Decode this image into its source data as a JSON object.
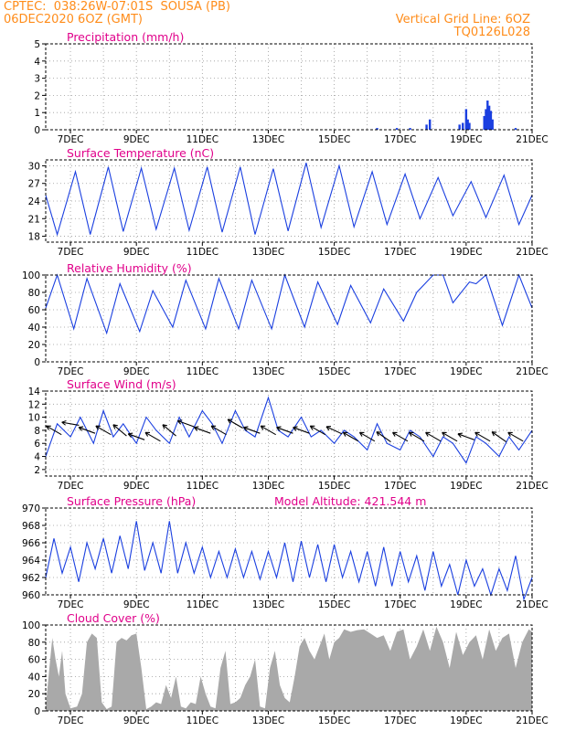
{
  "header": {
    "line1": "CPTEC:  038:26W-07:01S  SOUSA (PB)",
    "line2": "06DEC2020 6OZ (GMT)",
    "right1": "Vertical Grid Line: 6OZ",
    "right2": "TQ0126L028"
  },
  "colors": {
    "header": "#ff8c1a",
    "title": "#e0008a",
    "line": "#1a3fe0",
    "cloud": "#a9a9a9",
    "grid": "#9a9a9a"
  },
  "x_axis": {
    "range_days": [
      6.25,
      21
    ],
    "tick_days": [
      7,
      9,
      11,
      13,
      15,
      17,
      19,
      21
    ],
    "tick_labels": [
      "7DEC",
      "9DEC",
      "11DEC",
      "13DEC",
      "15DEC",
      "17DEC",
      "19DEC",
      "21DEC"
    ],
    "vertical_grid_days": [
      7,
      8,
      9,
      10,
      11,
      12,
      13,
      14,
      15,
      16,
      17,
      18,
      19,
      20
    ]
  },
  "chart_data": [
    {
      "type": "bar",
      "title": "Precipitation (mm/h)",
      "ylim": [
        0,
        5
      ],
      "yticks": [
        0,
        1,
        2,
        3,
        4,
        5
      ],
      "x": [
        16.3,
        16.9,
        17.3,
        17.8,
        17.9,
        18.8,
        18.9,
        19.0,
        19.05,
        19.1,
        19.55,
        19.6,
        19.65,
        19.7,
        19.75,
        19.8,
        20.5
      ],
      "values": [
        0.1,
        0.1,
        0.1,
        0.3,
        0.6,
        0.3,
        0.4,
        1.2,
        0.6,
        0.4,
        0.8,
        1.2,
        1.7,
        1.4,
        1.1,
        0.6,
        0.1
      ]
    },
    {
      "type": "line",
      "title": "Surface Temperature (nC)",
      "ylim": [
        17,
        31
      ],
      "yticks": [
        18,
        21,
        24,
        27,
        30
      ],
      "x": [
        6.25,
        6.6,
        7.15,
        7.6,
        8.15,
        8.6,
        9.15,
        9.6,
        10.15,
        10.6,
        11.15,
        11.6,
        12.15,
        12.6,
        13.15,
        13.6,
        14.15,
        14.6,
        15.15,
        15.6,
        16.15,
        16.6,
        17.15,
        17.6,
        18.15,
        18.6,
        19.15,
        19.6,
        20.15,
        20.6,
        21.0
      ],
      "values": [
        25,
        18.3,
        29,
        18.3,
        29.8,
        18.8,
        29.6,
        19.2,
        29.6,
        19.0,
        29.8,
        18.7,
        29.8,
        18.3,
        29.5,
        18.9,
        30.5,
        19.5,
        30.0,
        19.6,
        29.0,
        20.0,
        28.6,
        21.0,
        28.0,
        21.5,
        27.3,
        21.2,
        28.4,
        20.0,
        25
      ]
    },
    {
      "type": "line",
      "title": "Relative Humidity (%)",
      "ylim": [
        0,
        100
      ],
      "yticks": [
        0,
        20,
        40,
        60,
        80,
        100
      ],
      "x": [
        6.25,
        6.6,
        7.1,
        7.5,
        8.1,
        8.5,
        9.1,
        9.5,
        10.1,
        10.5,
        11.1,
        11.5,
        12.1,
        12.5,
        13.1,
        13.5,
        14.1,
        14.5,
        15.1,
        15.5,
        16.1,
        16.5,
        17.1,
        17.5,
        18.0,
        18.3,
        18.6,
        19.1,
        19.3,
        19.6,
        20.1,
        20.6,
        21.0
      ],
      "values": [
        62,
        100,
        38,
        96,
        33,
        90,
        35,
        82,
        40,
        94,
        38,
        96,
        38,
        94,
        38,
        100,
        40,
        92,
        43,
        88,
        45,
        84,
        47,
        80,
        100,
        100,
        68,
        92,
        90,
        100,
        42,
        100,
        62
      ]
    },
    {
      "type": "line",
      "title": "Surface Wind (m/s)",
      "ylim": [
        1,
        14
      ],
      "yticks": [
        2,
        4,
        6,
        8,
        10,
        12,
        14
      ],
      "x": [
        6.25,
        6.6,
        7.0,
        7.3,
        7.7,
        8.0,
        8.3,
        8.6,
        9.0,
        9.3,
        9.6,
        10.0,
        10.3,
        10.6,
        11.0,
        11.3,
        11.6,
        12.0,
        12.3,
        12.6,
        13.0,
        13.3,
        13.6,
        14.0,
        14.3,
        14.6,
        15.0,
        15.3,
        15.6,
        16.0,
        16.3,
        16.6,
        17.0,
        17.3,
        17.6,
        18.0,
        18.3,
        18.6,
        19.0,
        19.3,
        19.6,
        20.0,
        20.3,
        20.6,
        21.0
      ],
      "values": [
        4,
        9,
        7,
        10,
        6,
        11,
        7,
        9,
        6,
        10,
        8,
        6,
        10,
        7,
        11,
        9,
        6,
        11,
        8,
        7,
        13,
        8,
        7,
        10,
        7,
        8,
        6,
        8,
        7,
        5,
        9,
        6,
        5,
        8,
        7,
        4,
        7,
        6,
        3,
        7,
        6,
        4,
        7,
        5,
        8
      ],
      "wind_barbs": {
        "x": [
          6.5,
          7.0,
          7.5,
          8.0,
          8.5,
          9.0,
          9.5,
          10.0,
          10.5,
          11.0,
          11.5,
          12.0,
          12.5,
          13.0,
          13.5,
          14.0,
          14.5,
          15.0,
          15.5,
          16.0,
          16.5,
          17.0,
          17.5,
          18.0,
          18.5,
          19.0,
          19.5,
          20.0,
          20.5
        ],
        "speed": [
          8,
          9,
          8,
          8,
          8,
          7,
          7,
          8,
          9,
          8,
          8,
          9,
          8,
          8,
          8,
          8,
          8,
          8,
          7,
          7,
          7,
          7,
          7,
          7,
          7,
          7,
          7,
          7,
          7
        ],
        "dir_deg": [
          300,
          280,
          290,
          300,
          310,
          290,
          300,
          310,
          290,
          290,
          300,
          300,
          290,
          300,
          290,
          290,
          300,
          295,
          300,
          300,
          305,
          300,
          300,
          300,
          300,
          290,
          300,
          305,
          300
        ]
      }
    },
    {
      "type": "line",
      "title": "Surface Pressure (hPa)",
      "subtitle": "Model Altitude: 421.544  m",
      "ylim": [
        960,
        970
      ],
      "yticks": [
        960,
        962,
        964,
        966,
        968,
        970
      ],
      "x": [
        6.25,
        6.5,
        6.75,
        7.0,
        7.25,
        7.5,
        7.75,
        8.0,
        8.25,
        8.5,
        8.75,
        9.0,
        9.25,
        9.5,
        9.75,
        10.0,
        10.25,
        10.5,
        10.75,
        11.0,
        11.25,
        11.5,
        11.75,
        12.0,
        12.25,
        12.5,
        12.75,
        13.0,
        13.25,
        13.5,
        13.75,
        14.0,
        14.25,
        14.5,
        14.75,
        15.0,
        15.25,
        15.5,
        15.75,
        16.0,
        16.25,
        16.5,
        16.75,
        17.0,
        17.25,
        17.5,
        17.75,
        18.0,
        18.25,
        18.5,
        18.75,
        19.0,
        19.25,
        19.5,
        19.75,
        20.0,
        20.25,
        20.5,
        20.75,
        21.0
      ],
      "values": [
        962,
        966.5,
        962.5,
        965.5,
        961.5,
        966.0,
        963.0,
        966.5,
        962.5,
        966.8,
        963.0,
        968.5,
        962.8,
        966.0,
        962.5,
        968.5,
        962.5,
        966.0,
        962.5,
        965.5,
        962.0,
        965.0,
        962.0,
        965.3,
        962.0,
        965.0,
        961.8,
        965.0,
        962.0,
        966.0,
        961.5,
        966.2,
        962.0,
        965.8,
        961.5,
        965.8,
        962.0,
        965.0,
        961.5,
        965.0,
        961.0,
        965.5,
        961.0,
        965.0,
        961.5,
        964.5,
        960.5,
        965.0,
        961.0,
        963.5,
        960.0,
        964.0,
        961.0,
        963.0,
        960.0,
        963.0,
        960.5,
        964.5,
        959.5,
        962.0
      ]
    },
    {
      "type": "area",
      "title": "Cloud Cover (%)",
      "ylim": [
        0,
        100
      ],
      "yticks": [
        0,
        20,
        40,
        60,
        80,
        100
      ],
      "x": [
        6.25,
        6.45,
        6.55,
        6.65,
        6.75,
        6.85,
        7.0,
        7.2,
        7.35,
        7.5,
        7.65,
        7.8,
        7.95,
        8.1,
        8.25,
        8.4,
        8.55,
        8.7,
        8.85,
        9.0,
        9.15,
        9.3,
        9.45,
        9.6,
        9.75,
        9.9,
        10.05,
        10.2,
        10.35,
        10.5,
        10.65,
        10.8,
        10.95,
        11.1,
        11.25,
        11.4,
        11.55,
        11.7,
        11.85,
        12.0,
        12.15,
        12.3,
        12.45,
        12.6,
        12.75,
        12.9,
        13.05,
        13.2,
        13.35,
        13.5,
        13.65,
        13.8,
        13.95,
        14.1,
        14.25,
        14.4,
        14.55,
        14.7,
        14.85,
        15.0,
        15.15,
        15.3,
        15.5,
        15.7,
        15.9,
        16.1,
        16.3,
        16.5,
        16.7,
        16.9,
        17.1,
        17.3,
        17.5,
        17.7,
        17.9,
        18.1,
        18.3,
        18.5,
        18.7,
        18.9,
        19.1,
        19.3,
        19.5,
        19.7,
        19.9,
        20.1,
        20.3,
        20.5,
        20.7,
        20.9,
        21.0
      ],
      "values": [
        5,
        85,
        60,
        40,
        70,
        20,
        3,
        5,
        20,
        80,
        90,
        85,
        10,
        2,
        5,
        80,
        85,
        82,
        88,
        90,
        50,
        2,
        5,
        10,
        8,
        30,
        15,
        40,
        5,
        3,
        10,
        8,
        40,
        20,
        5,
        3,
        50,
        70,
        8,
        10,
        15,
        30,
        40,
        60,
        5,
        3,
        50,
        70,
        30,
        15,
        10,
        40,
        75,
        85,
        70,
        60,
        75,
        90,
        60,
        80,
        85,
        95,
        92,
        94,
        95,
        90,
        85,
        88,
        70,
        92,
        95,
        60,
        75,
        95,
        70,
        98,
        80,
        50,
        92,
        65,
        80,
        88,
        60,
        95,
        70,
        85,
        90,
        50,
        80,
        95,
        92
      ]
    }
  ]
}
